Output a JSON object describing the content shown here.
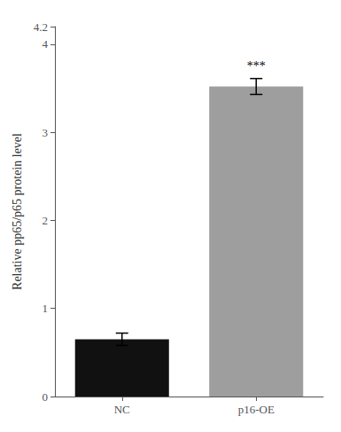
{
  "chart_data": {
    "type": "bar",
    "categories": [
      "NC",
      "p16-OE"
    ],
    "values": [
      0.65,
      3.52
    ],
    "errors": [
      0.07,
      0.09
    ],
    "colors": [
      "#111111",
      "#9e9e9e"
    ],
    "ylabel": "Relative pp65/p65 protein level",
    "ylim": [
      0,
      4.2
    ],
    "yticks": [
      0,
      1,
      2,
      3,
      4
    ],
    "grid": false,
    "annotations": [
      {
        "text": "***",
        "x": "p16-OE",
        "y": 3.68
      }
    ]
  }
}
